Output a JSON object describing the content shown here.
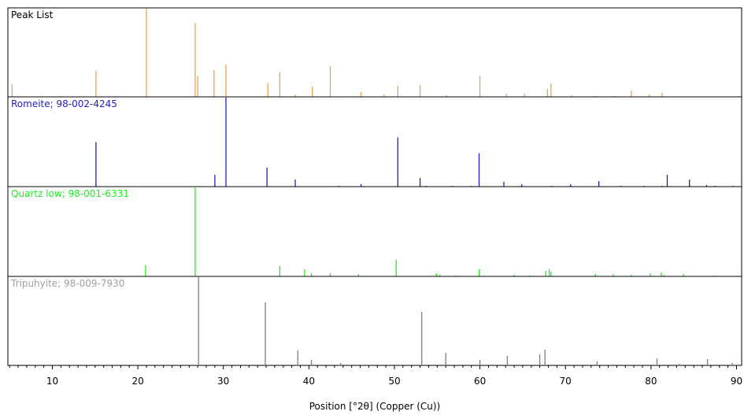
{
  "chart_data": {
    "type": "bar",
    "xlabel": "Position [°2θ] (Copper (Cu))",
    "xlim": [
      4.8,
      90.6
    ],
    "xticks": [
      10,
      20,
      30,
      40,
      50,
      60,
      70,
      80,
      90
    ],
    "panels": [
      {
        "name": "Peak List",
        "color": "#f0a050",
        "label_color": "#000000",
        "peaks": [
          [
            5.3,
            16
          ],
          [
            15.1,
            33
          ],
          [
            21.0,
            112
          ],
          [
            26.7,
            94
          ],
          [
            27.0,
            26
          ],
          [
            28.9,
            34
          ],
          [
            30.3,
            41
          ],
          [
            35.2,
            17
          ],
          [
            36.6,
            31
          ],
          [
            38.4,
            3
          ],
          [
            40.4,
            13
          ],
          [
            42.5,
            39
          ],
          [
            46.1,
            6
          ],
          [
            48.8,
            3
          ],
          [
            50.4,
            14
          ],
          [
            53.0,
            15
          ],
          [
            56.1,
            2
          ],
          [
            60.0,
            27
          ],
          [
            63.1,
            4
          ],
          [
            65.2,
            4
          ],
          [
            67.9,
            10
          ],
          [
            68.3,
            17
          ],
          [
            70.7,
            2
          ],
          [
            73.6,
            1
          ],
          [
            75.8,
            1
          ],
          [
            77.7,
            8
          ],
          [
            79.8,
            3
          ],
          [
            81.3,
            5
          ]
        ],
        "ymax": 112
      },
      {
        "name": "Romeite; 98-002-4245",
        "color": "#1f1fc8",
        "label_color": "#1f1fc8",
        "peaks": [
          [
            15.1,
            56
          ],
          [
            29.0,
            15
          ],
          [
            30.3,
            112
          ],
          [
            35.1,
            24
          ],
          [
            38.4,
            9
          ],
          [
            43.5,
            1
          ],
          [
            46.1,
            3
          ],
          [
            50.4,
            62
          ],
          [
            53.0,
            11
          ],
          [
            53.7,
            1
          ],
          [
            56.8,
            1
          ],
          [
            59.0,
            1
          ],
          [
            59.9,
            42
          ],
          [
            62.8,
            6
          ],
          [
            64.9,
            3
          ],
          [
            68.4,
            1
          ],
          [
            70.6,
            3
          ],
          [
            73.9,
            7
          ],
          [
            76.5,
            1
          ],
          [
            79.2,
            1
          ],
          [
            81.3,
            1
          ],
          [
            81.9,
            15
          ],
          [
            84.5,
            9
          ],
          [
            86.5,
            2
          ],
          [
            87.5,
            1
          ],
          [
            89.6,
            1
          ]
        ],
        "ymax": 112
      },
      {
        "name": "Quartz low; 98-001-6331",
        "color": "#22ee22",
        "label_color": "#22ee22",
        "peaks": [
          [
            20.9,
            14
          ],
          [
            26.7,
            112
          ],
          [
            36.6,
            13
          ],
          [
            39.5,
            9
          ],
          [
            40.3,
            4
          ],
          [
            42.5,
            4
          ],
          [
            45.8,
            3
          ],
          [
            50.2,
            21
          ],
          [
            54.9,
            4
          ],
          [
            55.3,
            2
          ],
          [
            57.2,
            1
          ],
          [
            59.9,
            9
          ],
          [
            64.0,
            2
          ],
          [
            65.8,
            1
          ],
          [
            67.7,
            7
          ],
          [
            68.1,
            9
          ],
          [
            68.3,
            6
          ],
          [
            73.5,
            3
          ],
          [
            75.6,
            3
          ],
          [
            77.7,
            2
          ],
          [
            79.9,
            4
          ],
          [
            81.2,
            5
          ],
          [
            81.5,
            2
          ],
          [
            83.8,
            3
          ],
          [
            87.4,
            1
          ]
        ],
        "ymax": 112
      },
      {
        "name": "Tripuhyite; 98-009-7930",
        "color": "#808080",
        "label_color": "#a0a0a0",
        "peaks": [
          [
            27.1,
            112
          ],
          [
            34.9,
            80
          ],
          [
            38.7,
            19
          ],
          [
            40.3,
            7
          ],
          [
            43.7,
            3
          ],
          [
            53.2,
            68
          ],
          [
            56.0,
            16
          ],
          [
            60.0,
            7
          ],
          [
            63.2,
            12
          ],
          [
            67.0,
            14
          ],
          [
            67.6,
            20
          ],
          [
            73.7,
            5
          ],
          [
            80.7,
            9
          ],
          [
            83.3,
            2
          ],
          [
            86.6,
            8
          ],
          [
            89.5,
            3
          ]
        ],
        "ymax": 112
      }
    ]
  }
}
